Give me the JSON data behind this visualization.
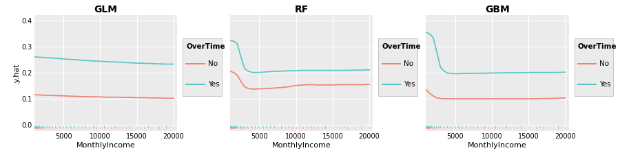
{
  "panels": [
    "GLM",
    "RF",
    "GBM"
  ],
  "xlabel": "MonthlyIncome",
  "ylabel": ".y.hat",
  "ylim": [
    -0.025,
    0.42
  ],
  "yticks": [
    0.0,
    0.1,
    0.2,
    0.3,
    0.4
  ],
  "xlim": [
    1000,
    20500
  ],
  "xticks": [
    5000,
    10000,
    15000,
    20000
  ],
  "xtick_labels": [
    "5000",
    "10000",
    "15000",
    "20000"
  ],
  "bg_color": "#ebebeb",
  "grid_color": "#ffffff",
  "color_no": "#f07f72",
  "color_yes": "#53c4c4",
  "legend_title": "OverTime",
  "legend_no": "No",
  "legend_yes": "Yes",
  "GLM": {
    "no_x": [
      1000,
      2000,
      3000,
      4000,
      5000,
      6000,
      7000,
      8000,
      9000,
      10000,
      11000,
      12000,
      13000,
      14000,
      15000,
      16000,
      17000,
      18000,
      19000,
      20000
    ],
    "no_y": [
      0.115,
      0.113,
      0.112,
      0.111,
      0.11,
      0.109,
      0.108,
      0.107,
      0.107,
      0.106,
      0.105,
      0.105,
      0.104,
      0.104,
      0.103,
      0.103,
      0.102,
      0.102,
      0.101,
      0.101
    ],
    "yes_x": [
      1000,
      2000,
      3000,
      4000,
      5000,
      6000,
      7000,
      8000,
      9000,
      10000,
      11000,
      12000,
      13000,
      14000,
      15000,
      16000,
      17000,
      18000,
      19000,
      20000
    ],
    "yes_y": [
      0.26,
      0.258,
      0.256,
      0.254,
      0.252,
      0.25,
      0.248,
      0.246,
      0.244,
      0.243,
      0.241,
      0.24,
      0.239,
      0.237,
      0.236,
      0.235,
      0.234,
      0.233,
      0.232,
      0.232
    ]
  },
  "RF": {
    "no_x": [
      1000,
      1500,
      2000,
      2500,
      3000,
      3500,
      4000,
      5000,
      6000,
      7000,
      8000,
      9000,
      10000,
      11000,
      12000,
      13000,
      14000,
      15000,
      16000,
      17000,
      18000,
      19000,
      20000
    ],
    "no_y": [
      0.204,
      0.2,
      0.19,
      0.165,
      0.145,
      0.138,
      0.136,
      0.137,
      0.138,
      0.14,
      0.142,
      0.145,
      0.15,
      0.152,
      0.153,
      0.152,
      0.152,
      0.152,
      0.153,
      0.153,
      0.153,
      0.153,
      0.154
    ],
    "yes_x": [
      1000,
      1500,
      2000,
      2500,
      3000,
      3500,
      4000,
      5000,
      6000,
      7000,
      8000,
      9000,
      10000,
      11000,
      12000,
      13000,
      14000,
      15000,
      16000,
      17000,
      18000,
      19000,
      20000
    ],
    "yes_y": [
      0.322,
      0.32,
      0.31,
      0.26,
      0.215,
      0.205,
      0.2,
      0.2,
      0.202,
      0.204,
      0.205,
      0.206,
      0.207,
      0.208,
      0.208,
      0.208,
      0.208,
      0.208,
      0.208,
      0.208,
      0.209,
      0.209,
      0.21
    ]
  },
  "GBM": {
    "no_x": [
      1000,
      1500,
      2000,
      2500,
      3000,
      3500,
      4000,
      5000,
      6000,
      7000,
      8000,
      9000,
      10000,
      11000,
      12000,
      13000,
      14000,
      15000,
      16000,
      17000,
      18000,
      19000,
      20000
    ],
    "no_y": [
      0.135,
      0.12,
      0.11,
      0.102,
      0.1,
      0.099,
      0.099,
      0.099,
      0.099,
      0.099,
      0.099,
      0.099,
      0.099,
      0.099,
      0.099,
      0.099,
      0.099,
      0.099,
      0.099,
      0.1,
      0.1,
      0.101,
      0.102
    ],
    "yes_x": [
      1000,
      1500,
      2000,
      2500,
      3000,
      3500,
      4000,
      5000,
      6000,
      7000,
      8000,
      9000,
      10000,
      11000,
      12000,
      13000,
      14000,
      15000,
      16000,
      17000,
      18000,
      19000,
      20000
    ],
    "yes_y": [
      0.355,
      0.348,
      0.335,
      0.28,
      0.22,
      0.205,
      0.197,
      0.195,
      0.196,
      0.196,
      0.197,
      0.197,
      0.198,
      0.198,
      0.199,
      0.199,
      0.199,
      0.2,
      0.2,
      0.2,
      0.2,
      0.2,
      0.201
    ]
  },
  "rug_no": [
    1060,
    1100,
    1170,
    1220,
    1280,
    1340,
    1400,
    1500,
    1600,
    1700,
    1800,
    1960,
    2094,
    2300,
    2500,
    2800,
    3100,
    3500,
    4000,
    4500,
    5000,
    5500,
    6000,
    6500,
    7000,
    7500,
    8000,
    8500,
    9000,
    9500,
    10000,
    10500,
    11000,
    11500,
    12000,
    12500,
    13000,
    13500,
    14000,
    15000,
    16000,
    17000,
    18000,
    19000,
    20000
  ],
  "rug_yes": [
    1000,
    1050,
    1150,
    1250,
    1350,
    1450,
    1550,
    1650,
    1750,
    1900,
    2100,
    2400,
    2700,
    3000,
    3400,
    3900,
    4400,
    4900,
    5400,
    5900,
    6500,
    7000,
    8000,
    9000,
    10500,
    12000,
    14000,
    16500,
    19000
  ]
}
